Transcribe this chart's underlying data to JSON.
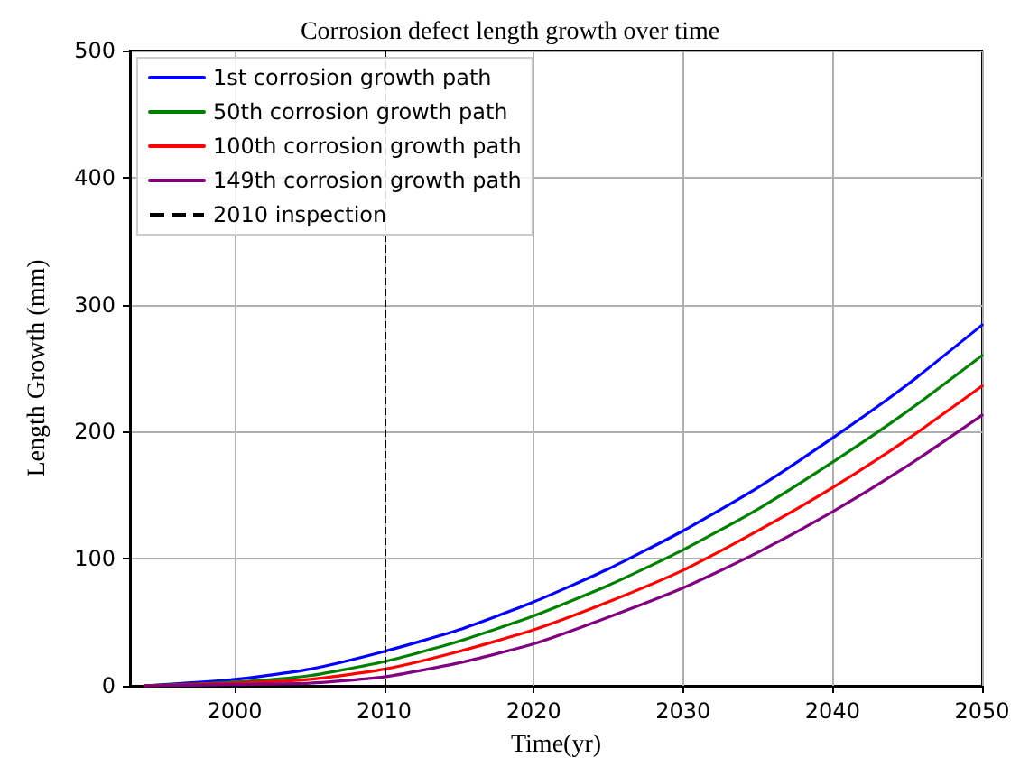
{
  "chart_data": {
    "type": "line",
    "title": "Corrosion defect length growth over time",
    "xlabel": "Time(yr)",
    "ylabel": "Length Growth (mm)",
    "x": [
      1994,
      2000,
      2005,
      2010,
      2015,
      2020,
      2025,
      2030,
      2035,
      2040,
      2045,
      2050
    ],
    "series": [
      {
        "name": "1st corrosion growth path",
        "color": "#0000ff",
        "values": [
          0,
          5,
          13,
          27,
          44,
          66,
          92,
          122,
          156,
          195,
          237,
          284
        ]
      },
      {
        "name": "50th corrosion growth path",
        "color": "#008000",
        "values": [
          0,
          3,
          8,
          19,
          35,
          55,
          79,
          107,
          139,
          176,
          216,
          260
        ]
      },
      {
        "name": "100th corrosion growth path",
        "color": "#ff0000",
        "values": [
          0,
          2,
          5,
          13,
          27,
          44,
          66,
          91,
          122,
          156,
          194,
          236
        ]
      },
      {
        "name": "149th corrosion growth path",
        "color": "#800080",
        "values": [
          0,
          1,
          2,
          7,
          18,
          33,
          54,
          77,
          105,
          137,
          173,
          213
        ]
      }
    ],
    "ref_lines": [
      {
        "axis": "x",
        "value": 2010,
        "label": "2010 inspection",
        "color": "#000000",
        "line_style": "dashed"
      }
    ],
    "xlim": [
      1993,
      2050
    ],
    "xticks": [
      2000,
      2010,
      2020,
      2030,
      2040,
      2050
    ],
    "ylim": [
      0,
      500
    ],
    "yticks": [
      0,
      100,
      200,
      300,
      400,
      500
    ],
    "grid": true,
    "legend": "top left",
    "marker": "none",
    "line_style": "solid"
  }
}
